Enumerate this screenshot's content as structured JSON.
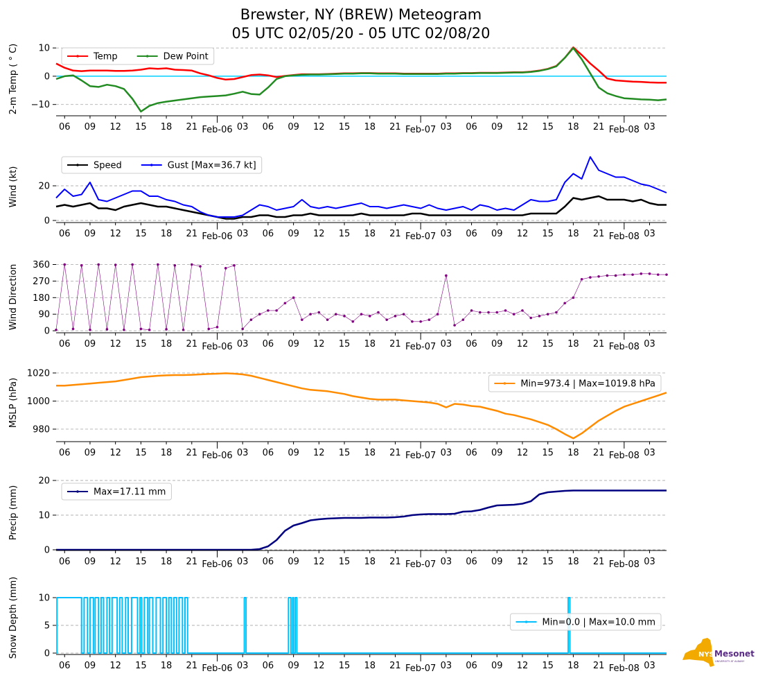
{
  "title_line1": "Brewster, NY (BREW) Meteogram",
  "title_line2": "05 UTC 02/05/20 - 05 UTC 02/08/20",
  "logo": {
    "text": "NYS",
    "name": "Mesonet",
    "sub": "UNIVERSITY AT ALBANY",
    "color_state": "#f2a900",
    "color_text": "#5b2d86"
  },
  "chart_data": {
    "type": "line",
    "x_unit": "hours since 05 UTC 02/05/20",
    "x_range": [
      0,
      72
    ],
    "x_ticks": [
      {
        "hour": 1,
        "label": "06"
      },
      {
        "hour": 4,
        "label": "09"
      },
      {
        "hour": 7,
        "label": "12"
      },
      {
        "hour": 10,
        "label": "15"
      },
      {
        "hour": 13,
        "label": "18"
      },
      {
        "hour": 16,
        "label": "21"
      },
      {
        "hour": 22,
        "label": "03"
      },
      {
        "hour": 25,
        "label": "06"
      },
      {
        "hour": 28,
        "label": "09"
      },
      {
        "hour": 31,
        "label": "12"
      },
      {
        "hour": 34,
        "label": "15"
      },
      {
        "hour": 37,
        "label": "18"
      },
      {
        "hour": 40,
        "label": "21"
      },
      {
        "hour": 46,
        "label": "03"
      },
      {
        "hour": 49,
        "label": "06"
      },
      {
        "hour": 52,
        "label": "09"
      },
      {
        "hour": 55,
        "label": "12"
      },
      {
        "hour": 58,
        "label": "15"
      },
      {
        "hour": 61,
        "label": "18"
      },
      {
        "hour": 64,
        "label": "21"
      },
      {
        "hour": 70,
        "label": "03"
      }
    ],
    "date_ticks": [
      {
        "hour": 19,
        "label": "Feb-06"
      },
      {
        "hour": 43,
        "label": "Feb-07"
      },
      {
        "hour": 67,
        "label": "Feb-08"
      }
    ],
    "grid": "horizontal dashed",
    "panels": [
      {
        "id": "temp",
        "ylabel": "2-m Temp ($^\\circ$C)",
        "ylabel_display": "2-m Temp ( ° C)",
        "ylim": [
          -14,
          12
        ],
        "yticks": [
          {
            "v": -10,
            "label": "−10"
          },
          {
            "v": 0,
            "label": "0"
          },
          {
            "v": 10,
            "label": "10"
          }
        ],
        "reference_line": {
          "value": 0,
          "color": "#00cfff"
        },
        "legend": {
          "position": "upper left",
          "columns": 2
        },
        "series": [
          {
            "name": "Temp",
            "color": "#ff0000",
            "width": 2.5,
            "values": [
              4.5,
              3.0,
              2.0,
              1.8,
              2.0,
              2.0,
              2.0,
              1.9,
              1.9,
              2.0,
              2.3,
              2.8,
              2.6,
              2.8,
              2.3,
              2.2,
              2.0,
              1.0,
              0.3,
              -0.6,
              -1.2,
              -1.0,
              -0.3,
              0.4,
              0.6,
              0.3,
              -0.3,
              0.1,
              0.4,
              0.7,
              0.7,
              0.7,
              0.8,
              0.9,
              1.0,
              1.0,
              1.1,
              1.1,
              1.0,
              1.0,
              1.0,
              0.9,
              0.9,
              0.9,
              0.9,
              0.9,
              1.0,
              1.0,
              1.1,
              1.1,
              1.2,
              1.2,
              1.2,
              1.3,
              1.4,
              1.4,
              1.6,
              2.0,
              2.6,
              3.6,
              6.5,
              10.2,
              7.5,
              4.5,
              2.0,
              -0.8,
              -1.5,
              -1.7,
              -1.9,
              -2.0,
              -2.2,
              -2.3,
              -2.3
            ]
          },
          {
            "name": "Dew Point",
            "color": "#228b22",
            "width": 2.5,
            "values": [
              -1.0,
              0.0,
              0.3,
              -1.5,
              -3.5,
              -3.8,
              -3.0,
              -3.5,
              -4.5,
              -8.0,
              -12.5,
              -10.5,
              -9.5,
              -9.0,
              -8.6,
              -8.2,
              -7.8,
              -7.4,
              -7.2,
              -7.0,
              -6.8,
              -6.2,
              -5.5,
              -6.3,
              -6.5,
              -4.0,
              -1.0,
              0.0,
              0.3,
              0.5,
              0.6,
              0.6,
              0.7,
              0.8,
              0.9,
              0.9,
              1.0,
              1.0,
              0.9,
              0.9,
              0.9,
              0.8,
              0.8,
              0.8,
              0.8,
              0.8,
              0.9,
              0.9,
              1.0,
              1.0,
              1.1,
              1.1,
              1.1,
              1.2,
              1.3,
              1.3,
              1.5,
              1.9,
              2.5,
              3.5,
              6.5,
              10.0,
              6.0,
              1.0,
              -4.0,
              -6.0,
              -7.0,
              -7.8,
              -8.0,
              -8.2,
              -8.3,
              -8.5,
              -8.2
            ]
          }
        ]
      },
      {
        "id": "wind",
        "ylabel_display": "Wind (kt)",
        "ylim": [
          -1.2,
          40
        ],
        "yticks": [
          {
            "v": 0,
            "label": "0"
          },
          {
            "v": 20,
            "label": "20"
          }
        ],
        "legend": {
          "position": "upper left",
          "columns": 2
        },
        "series": [
          {
            "name": "Speed",
            "color": "#000000",
            "width": 2.5,
            "values": [
              8,
              9,
              8,
              9,
              10,
              7,
              7,
              6,
              8,
              9,
              10,
              9,
              8,
              8,
              7,
              6,
              5,
              4,
              3,
              2,
              1,
              1,
              2,
              2,
              3,
              3,
              2,
              2,
              3,
              3,
              4,
              3,
              3,
              3,
              3,
              3,
              4,
              3,
              3,
              3,
              3,
              3,
              4,
              4,
              3,
              3,
              3,
              3,
              3,
              3,
              3,
              3,
              3,
              3,
              3,
              3,
              4,
              4,
              4,
              4,
              8,
              13,
              12,
              13,
              14,
              12,
              12,
              12,
              11,
              12,
              10,
              9,
              9
            ]
          },
          {
            "name": "Gust [Max=36.7 kt]",
            "color": "#0000ff",
            "width": 2,
            "values": [
              13,
              18,
              14,
              15,
              22,
              12,
              11,
              13,
              15,
              17,
              17,
              14,
              14,
              12,
              11,
              9,
              8,
              5,
              3,
              2,
              2,
              2,
              3,
              6,
              9,
              8,
              6,
              7,
              8,
              12,
              8,
              7,
              8,
              7,
              8,
              9,
              10,
              8,
              8,
              7,
              8,
              9,
              8,
              7,
              9,
              7,
              6,
              7,
              8,
              6,
              9,
              8,
              6,
              7,
              6,
              9,
              12,
              11,
              11,
              12,
              22,
              27,
              24,
              36.7,
              29,
              27,
              25,
              25,
              23,
              21,
              20,
              18,
              16
            ]
          }
        ]
      },
      {
        "id": "direction",
        "ylabel_display": "Wind Direction",
        "ylim": [
          -11,
          377
        ],
        "yticks": [
          {
            "v": 0,
            "label": "0"
          },
          {
            "v": 90,
            "label": "90"
          },
          {
            "v": 180,
            "label": "180"
          },
          {
            "v": 270,
            "label": "270"
          },
          {
            "v": 360,
            "label": "360"
          }
        ],
        "series": [
          {
            "name": "Direction",
            "color": "#800080",
            "width": 0.6,
            "markers": true,
            "values": [
              5,
              360,
              10,
              355,
              5,
              360,
              8,
              358,
              5,
              360,
              10,
              5,
              360,
              8,
              355,
              5,
              360,
              350,
              10,
              20,
              340,
              355,
              10,
              60,
              90,
              110,
              110,
              150,
              180,
              60,
              90,
              100,
              60,
              90,
              80,
              50,
              90,
              80,
              100,
              60,
              80,
              90,
              50,
              50,
              60,
              90,
              300,
              30,
              60,
              110,
              100,
              100,
              100,
              110,
              90,
              110,
              70,
              80,
              90,
              100,
              150,
              180,
              280,
              290,
              295,
              300,
              300,
              305,
              305,
              310,
              310,
              305,
              305
            ]
          }
        ]
      },
      {
        "id": "mslp",
        "ylabel_display": "MSLP (hPa)",
        "ylim": [
          971.1,
          1026.4
        ],
        "yticks": [
          {
            "v": 980,
            "label": "980"
          },
          {
            "v": 1000,
            "label": "1000"
          },
          {
            "v": 1020,
            "label": "1020"
          }
        ],
        "legend": {
          "position": "upper right",
          "columns": 1
        },
        "series": [
          {
            "name": "Min=973.4 | Max=1019.8 hPa",
            "color": "#ff8c00",
            "width": 2.5,
            "values": [
              1011,
              1011,
              1011.5,
              1012,
              1012.5,
              1013,
              1013.5,
              1014,
              1015,
              1016,
              1017,
              1017.5,
              1018,
              1018.3,
              1018.5,
              1018.5,
              1018.7,
              1019,
              1019.3,
              1019.5,
              1019.8,
              1019.5,
              1019,
              1018,
              1016.5,
              1015,
              1013.5,
              1012,
              1010.5,
              1009,
              1008,
              1007.5,
              1007,
              1006,
              1005,
              1003.5,
              1002.5,
              1001.5,
              1001,
              1001,
              1001,
              1000.5,
              1000,
              999.5,
              999,
              998,
              995.5,
              998,
              997.5,
              996.5,
              996,
              994.5,
              993,
              991,
              990,
              988.5,
              987,
              985,
              983,
              980,
              976.5,
              973.4,
              977,
              981.5,
              986,
              989.5,
              993,
              996,
              998,
              1000,
              1002,
              1004,
              1006
            ]
          }
        ]
      },
      {
        "id": "precip",
        "ylabel_display": "Precip (mm)",
        "ylim": [
          -0.2,
          21.6
        ],
        "yticks": [
          {
            "v": 0,
            "label": "0"
          },
          {
            "v": 10,
            "label": "10"
          },
          {
            "v": 20,
            "label": "20"
          }
        ],
        "legend": {
          "position": "upper left",
          "columns": 1
        },
        "series": [
          {
            "name": "Max=17.11 mm",
            "color": "#000080",
            "width": 2.5,
            "values": [
              0,
              0,
              0,
              0,
              0,
              0,
              0,
              0,
              0,
              0,
              0,
              0,
              0,
              0,
              0,
              0,
              0,
              0,
              0,
              0,
              0,
              0,
              0,
              0,
              0.2,
              1.0,
              2.8,
              5.5,
              7.0,
              7.7,
              8.5,
              8.8,
              9.0,
              9.1,
              9.2,
              9.2,
              9.2,
              9.3,
              9.3,
              9.3,
              9.4,
              9.6,
              10.0,
              10.2,
              10.3,
              10.3,
              10.3,
              10.4,
              11.0,
              11.1,
              11.5,
              12.2,
              12.8,
              12.9,
              13.0,
              13.3,
              14.0,
              16.0,
              16.6,
              16.8,
              17.0,
              17.11,
              17.11,
              17.11,
              17.11,
              17.11,
              17.11,
              17.11,
              17.11,
              17.11,
              17.11,
              17.11,
              17.11
            ]
          }
        ]
      },
      {
        "id": "snow",
        "ylabel_display": "Snow Depth (mm)",
        "ylim": [
          -0.25,
          13
        ],
        "yticks": [
          {
            "v": 0,
            "label": "0"
          },
          {
            "v": 5,
            "label": "5"
          },
          {
            "v": 10,
            "label": "10"
          }
        ],
        "legend": {
          "position": "center right",
          "columns": 1
        },
        "series": [
          {
            "name": "Min=0.0 | Max=10.0 mm",
            "color": "#00bfff",
            "width": 2,
            "high_value": 10,
            "low_value": 0,
            "high_intervals": [
              [
                0.1,
                3.0
              ],
              [
                3.3,
                3.7
              ],
              [
                4.0,
                4.4
              ],
              [
                4.6,
                5.0
              ],
              [
                5.3,
                5.6
              ],
              [
                6.0,
                6.3
              ],
              [
                6.6,
                7.2
              ],
              [
                7.5,
                7.8
              ],
              [
                8.2,
                8.5
              ],
              [
                8.9,
                9.6
              ],
              [
                9.9,
                10.1
              ],
              [
                10.4,
                10.8
              ],
              [
                11.0,
                11.4
              ],
              [
                11.8,
                12.3
              ],
              [
                12.6,
                13.0
              ],
              [
                13.3,
                13.6
              ],
              [
                13.9,
                14.2
              ],
              [
                14.5,
                14.9
              ],
              [
                15.2,
                15.5
              ],
              [
                22.2,
                22.4
              ],
              [
                27.4,
                27.7
              ],
              [
                27.9,
                28.0
              ],
              [
                28.2,
                28.4
              ],
              [
                60.4,
                60.6
              ]
            ]
          }
        ]
      }
    ]
  }
}
